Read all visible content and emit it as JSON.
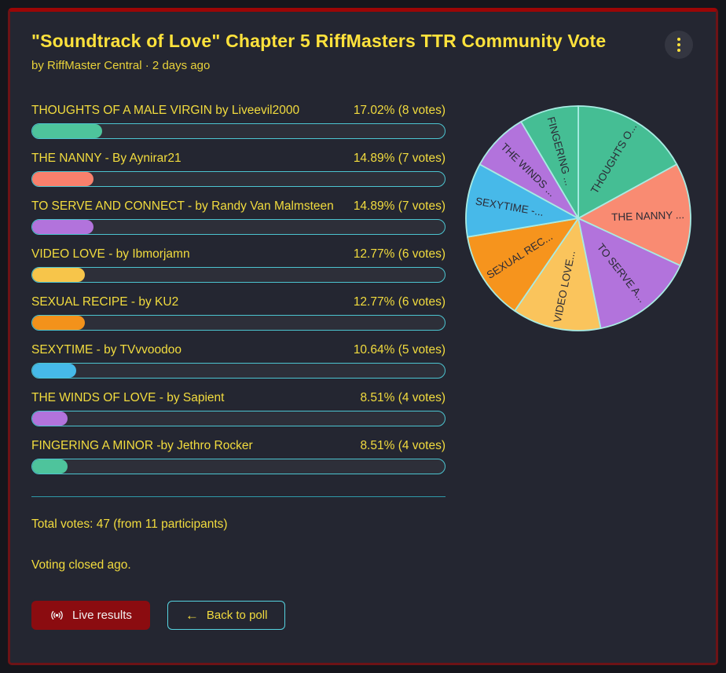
{
  "header": {
    "title": "\"Soundtrack of Love\" Chapter 5 RiffMasters TTR Community Vote",
    "byline": "by RiffMaster Central · 2 days ago",
    "menu_icon": "kebab-vertical-dots"
  },
  "options": [
    {
      "label": "THOUGHTS OF A MALE VIRGIN by Liveevil2000",
      "percent_text": "17.02% (8 votes)",
      "percent": 17.02,
      "votes": 8,
      "color": "#4ec49c"
    },
    {
      "label": "THE NANNY - By Aynirar21",
      "percent_text": "14.89% (7 votes)",
      "percent": 14.89,
      "votes": 7,
      "color": "#f9806c"
    },
    {
      "label": "TO SERVE AND CONNECT - by Randy Van Malmsteen",
      "percent_text": "14.89% (7 votes)",
      "percent": 14.89,
      "votes": 7,
      "color": "#b273dc"
    },
    {
      "label": "VIDEO LOVE - by Ibmorjamn",
      "percent_text": "12.77% (6 votes)",
      "percent": 12.77,
      "votes": 6,
      "color": "#f7c54a"
    },
    {
      "label": "SEXUAL RECIPE - by KU2",
      "percent_text": "12.77% (6 votes)",
      "percent": 12.77,
      "votes": 6,
      "color": "#f3921b"
    },
    {
      "label": "SEXYTIME - by TVvvoodoo",
      "percent_text": "10.64% (5 votes)",
      "percent": 10.64,
      "votes": 5,
      "color": "#46b9e9"
    },
    {
      "label": "THE WINDS OF LOVE - by Sapient",
      "percent_text": "8.51% (4 votes)",
      "percent": 8.51,
      "votes": 4,
      "color": "#b273dc"
    },
    {
      "label": "FINGERING A MINOR -by Jethro Rocker",
      "percent_text": "8.51% (4 votes)",
      "percent": 8.51,
      "votes": 4,
      "color": "#4ec49c"
    }
  ],
  "summary": {
    "total_votes_text": "Total votes: 47 (from 11 participants)",
    "total_votes": 47,
    "participants": 11,
    "closed_text": "Voting closed ago."
  },
  "buttons": {
    "live_results_label": "Live results",
    "live_icon": "broadcast-live-icon",
    "back_to_poll_label": "Back to poll",
    "back_arrow": "←"
  },
  "chart_data": {
    "type": "pie",
    "title": "",
    "labels": [
      "THOUGHTS O...",
      "THE NANNY ...",
      "TO SERVE A...",
      "VIDEO LOVE...",
      "SEXUAL REC...",
      "SEXYTIME -...",
      "THE WINDS ...",
      "FINGERING ..."
    ],
    "full_labels": [
      "THOUGHTS OF A MALE VIRGIN by Liveevil2000",
      "THE NANNY - By Aynirar21",
      "TO SERVE AND CONNECT - by Randy Van Malmsteen",
      "VIDEO LOVE - by Ibmorjamn",
      "SEXUAL RECIPE - by KU2",
      "SEXYTIME - by TVvvoodoo",
      "THE WINDS OF LOVE - by Sapient",
      "FINGERING A MINOR -by Jethro Rocker"
    ],
    "values": [
      8,
      7,
      7,
      6,
      6,
      5,
      4,
      4
    ],
    "percents": [
      17.02,
      14.89,
      14.89,
      12.77,
      12.77,
      10.64,
      8.51,
      8.51
    ],
    "colors": [
      "#45be94",
      "#f98b72",
      "#b273dc",
      "#fac45c",
      "#f6941d",
      "#47b9e9",
      "#b273dc",
      "#45be94"
    ],
    "stroke_color": "#a9ebe3",
    "label_color": "#2b2b36",
    "start_angle": "top",
    "direction": "clockwise",
    "legend_position": "none"
  },
  "colors": {
    "page_bg": "#15161c",
    "card_bg": "#242631",
    "frame_border": "#8b0e12",
    "accent_yellow": "#f2dc3e",
    "bar_track": "#2d2f39",
    "bar_border": "#4cc4d0",
    "divider": "#2f9aa9",
    "live_button_bg": "#8b0c10"
  }
}
